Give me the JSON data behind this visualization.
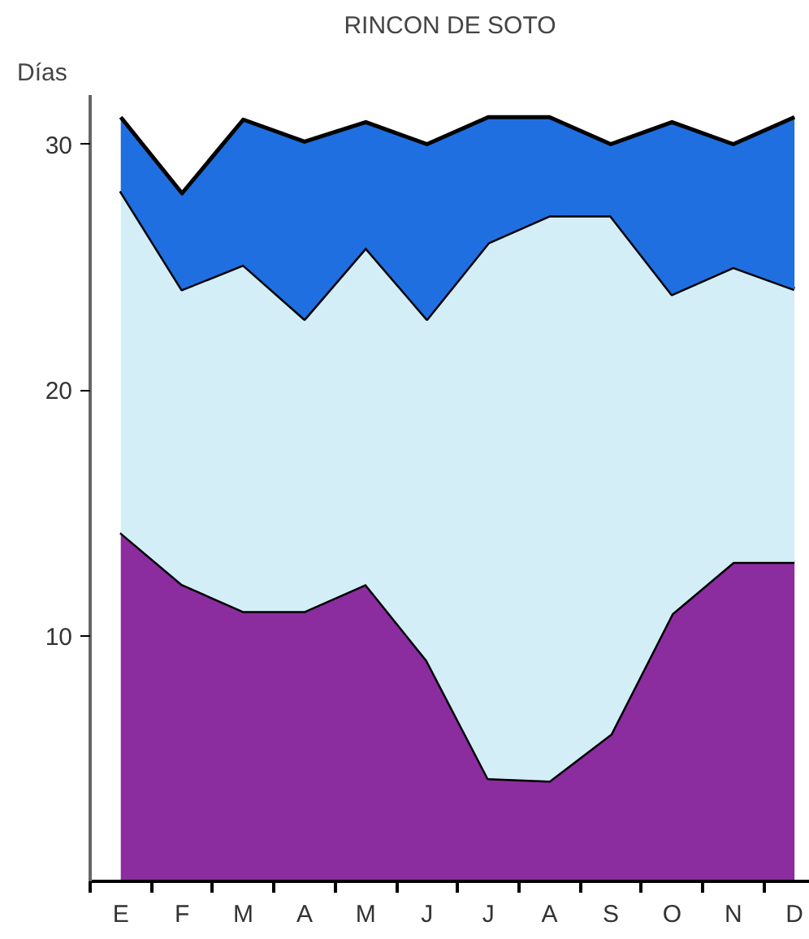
{
  "chart_data": {
    "type": "area",
    "title": "RINCON DE SOTO",
    "ylabel": "Días",
    "stacked": true,
    "categories": [
      "E",
      "F",
      "M",
      "A",
      "M",
      "J",
      "J",
      "A",
      "S",
      "O",
      "N",
      "D"
    ],
    "ylim": [
      0,
      32
    ],
    "yticks": [
      10,
      20,
      30
    ],
    "grid": false,
    "series": [
      {
        "color": "#8b2c9f",
        "values": [
          14.2,
          12.1,
          11.0,
          11.0,
          12.1,
          9.0,
          4.2,
          4.1,
          6.0,
          10.9,
          13.0,
          13.0
        ]
      },
      {
        "color": "#d4eef7",
        "values": [
          13.9,
          12.0,
          14.1,
          11.9,
          13.7,
          13.9,
          21.8,
          23.0,
          21.1,
          13.0,
          12.0,
          11.1
        ]
      },
      {
        "color": "#1f6fe0",
        "values": [
          3.0,
          3.9,
          5.9,
          7.2,
          5.1,
          7.1,
          5.1,
          4.0,
          2.9,
          7.0,
          5.0,
          7.0
        ]
      }
    ]
  }
}
